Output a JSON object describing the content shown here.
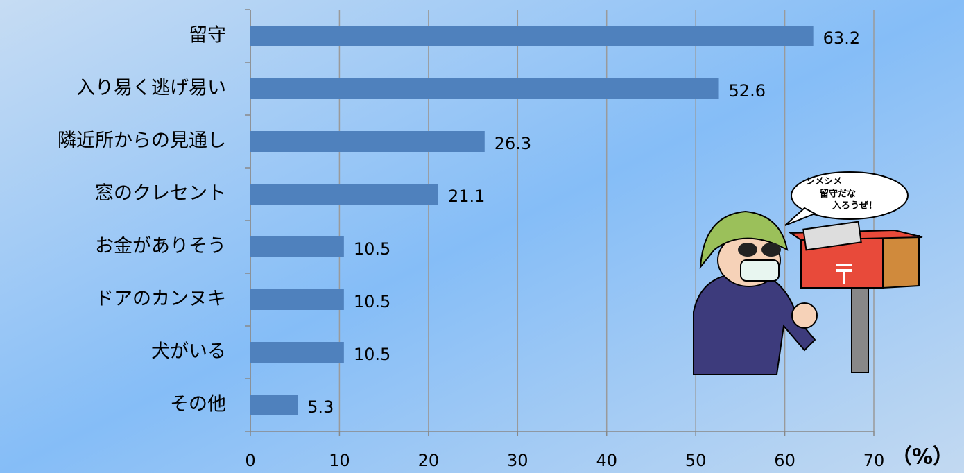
{
  "chart_data": {
    "type": "bar",
    "horizontal": true,
    "categories": [
      "留守",
      "入り易く逃げ易い",
      "隣近所からの見通し",
      "窓のクレセント",
      "お金がありそう",
      "ドアのカンヌキ",
      "犬がいる",
      "その他"
    ],
    "values": [
      63.2,
      52.6,
      26.3,
      21.1,
      10.5,
      10.5,
      10.5,
      5.3
    ],
    "color": "#4f81bd",
    "xlim": [
      0,
      70
    ],
    "xticks": [
      0,
      10,
      20,
      30,
      40,
      50,
      60,
      70
    ],
    "grid": true,
    "x_label": "（%）",
    "annotations": [
      "シメシメ",
      "留守だな",
      "入ろうぜ！"
    ]
  }
}
